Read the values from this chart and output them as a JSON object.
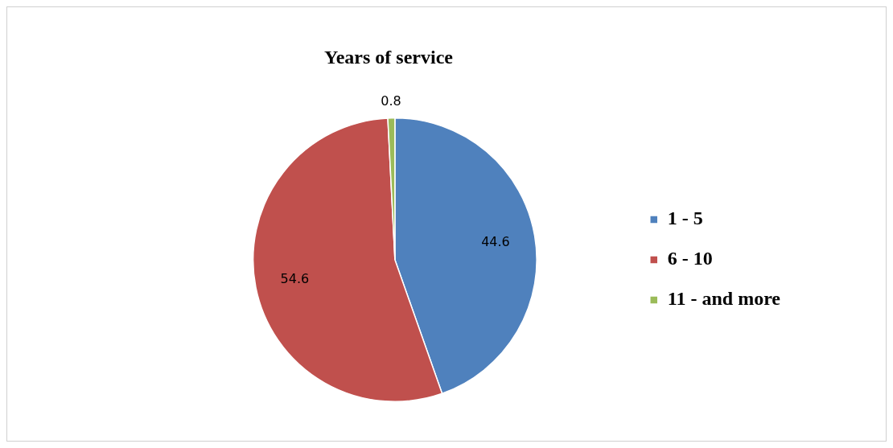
{
  "chart_data": {
    "type": "pie",
    "title": "Years of service",
    "categories": [
      "1 - 5",
      "6 - 10",
      "11 - and more"
    ],
    "values": [
      44.6,
      54.6,
      0.8
    ],
    "colors": [
      "#4f81bd",
      "#c0504d",
      "#9bbb59"
    ],
    "data_labels": true,
    "legend": "right"
  }
}
